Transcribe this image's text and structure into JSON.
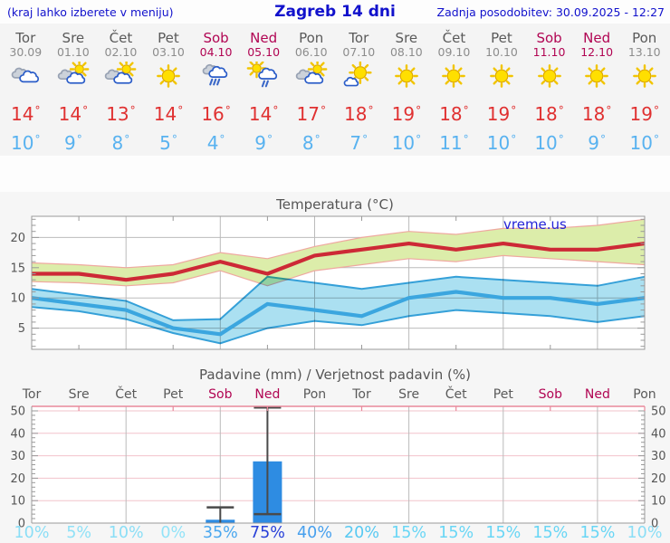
{
  "header": {
    "hint": "(kraj lahko izberete v meniju)",
    "title": "Zagreb 14 dni",
    "updated": "Zadnja posodobitev: 30.09.2025 - 12:27"
  },
  "colors": {
    "accent_blue": "#1111cc",
    "weekend": "#b10553",
    "day_label": "#5a5a5a",
    "date_label": "#8c8c8c",
    "temp_max_text": "#e03131",
    "temp_min_text": "#58b2f0",
    "chart_title": "#555555",
    "grid": "#bbbbbb",
    "spine": "#999999",
    "tick_label": "#555555",
    "max_line": "#cd2936",
    "max_band": "#dcedaa",
    "max_band_edge": "#efa8a0",
    "min_line": "#3ba6df",
    "min_band": "#abe0f1",
    "min_band_edge": "#35a0d8",
    "watermark": "#2323d7",
    "precip_grid": "#f2c3cb",
    "precip_top_spine": "#e8899b",
    "bar_fill": "#2e8ce2",
    "whisker": "#4a4a4a"
  },
  "icon_colors": {
    "sun_fill": "#ffdf00",
    "sun_ray": "#f2c500",
    "sun_stroke": "#dda700",
    "cloud_gray_fill": "#ccd2da",
    "cloud_gray_stroke": "#98a2b3",
    "cloud_white_fill": "#ffffff",
    "cloud_white_stroke": "#2b5dc8",
    "rain": "#3a67c8"
  },
  "forecast": {
    "days": [
      {
        "name": "Tor",
        "date": "30.09",
        "weekend": false,
        "icon": "cloudy",
        "tmax": "14",
        "tmin": "10"
      },
      {
        "name": "Sre",
        "date": "01.10",
        "weekend": false,
        "icon": "partly-cloudy",
        "tmax": "14",
        "tmin": "9"
      },
      {
        "name": "Čet",
        "date": "02.10",
        "weekend": false,
        "icon": "partly-cloudy",
        "tmax": "13",
        "tmin": "8"
      },
      {
        "name": "Pet",
        "date": "03.10",
        "weekend": false,
        "icon": "sunny",
        "tmax": "14",
        "tmin": "5"
      },
      {
        "name": "Sob",
        "date": "04.10",
        "weekend": true,
        "icon": "rain",
        "tmax": "16",
        "tmin": "4"
      },
      {
        "name": "Ned",
        "date": "05.10",
        "weekend": true,
        "icon": "sun-rain",
        "tmax": "14",
        "tmin": "9"
      },
      {
        "name": "Pon",
        "date": "06.10",
        "weekend": false,
        "icon": "partly-cloudy",
        "tmax": "17",
        "tmin": "8"
      },
      {
        "name": "Tor",
        "date": "07.10",
        "weekend": false,
        "icon": "mostly-sunny",
        "tmax": "18",
        "tmin": "7"
      },
      {
        "name": "Sre",
        "date": "08.10",
        "weekend": false,
        "icon": "sunny",
        "tmax": "19",
        "tmin": "10"
      },
      {
        "name": "Čet",
        "date": "09.10",
        "weekend": false,
        "icon": "sunny",
        "tmax": "18",
        "tmin": "11"
      },
      {
        "name": "Pet",
        "date": "10.10",
        "weekend": false,
        "icon": "sunny",
        "tmax": "19",
        "tmin": "10"
      },
      {
        "name": "Sob",
        "date": "11.10",
        "weekend": true,
        "icon": "sunny",
        "tmax": "18",
        "tmin": "10"
      },
      {
        "name": "Ned",
        "date": "12.10",
        "weekend": true,
        "icon": "sunny",
        "tmax": "18",
        "tmin": "9"
      },
      {
        "name": "Pon",
        "date": "13.10",
        "weekend": false,
        "icon": "sunny",
        "tmax": "19",
        "tmin": "10"
      }
    ]
  },
  "chart_data": [
    {
      "type": "line",
      "title": "Temperatura (°C)",
      "watermark": "vreme.us",
      "x_labels": [
        "Tor",
        "Sre",
        "Čet",
        "Pet",
        "Sob",
        "Ned",
        "Pon",
        "Tor",
        "Sre",
        "Čet",
        "Pet",
        "Sob",
        "Ned",
        "Pon"
      ],
      "ylim": [
        1.5,
        23.5
      ],
      "yticks": [
        5,
        10,
        15,
        20
      ],
      "grid_x_indices": [
        2,
        4,
        6,
        8,
        10,
        12
      ],
      "top_tick_indices": [
        1,
        3,
        5,
        7,
        9,
        11,
        13
      ],
      "series": [
        {
          "name": "t_max",
          "values": [
            14,
            14,
            13,
            14,
            16,
            14,
            17,
            18,
            19,
            18,
            19,
            18,
            18,
            19
          ]
        },
        {
          "name": "t_max_upper",
          "values": [
            15.8,
            15.5,
            15,
            15.5,
            17.5,
            16.5,
            18.5,
            20,
            21,
            20.5,
            21.5,
            21.5,
            22,
            23
          ]
        },
        {
          "name": "t_max_lower",
          "values": [
            12.7,
            12.5,
            12,
            12.5,
            14.5,
            12,
            14.5,
            15.5,
            16.5,
            16,
            17,
            16.5,
            16,
            15.5
          ]
        },
        {
          "name": "t_min",
          "values": [
            10,
            9,
            8,
            5,
            4,
            9,
            8,
            7,
            10,
            11,
            10,
            10,
            9,
            10
          ]
        },
        {
          "name": "t_min_upper",
          "values": [
            11.5,
            10.5,
            9.5,
            6.3,
            6.5,
            13.5,
            12.5,
            11.5,
            12.5,
            13.5,
            13,
            12.5,
            12,
            13.5
          ]
        },
        {
          "name": "t_min_lower",
          "values": [
            8.5,
            7.8,
            6.5,
            4.2,
            2.5,
            5,
            6.2,
            5.5,
            7,
            8,
            7.5,
            7,
            6,
            7
          ]
        }
      ]
    },
    {
      "type": "bar",
      "title": "Padavine (mm) / Verjetnost padavin (%)",
      "ylim": [
        0,
        52
      ],
      "yticks": [
        0,
        10,
        20,
        30,
        40,
        50
      ],
      "grid_x_indices": [
        2,
        4,
        6,
        8,
        10,
        12
      ],
      "top_tick_indices": [
        1,
        3,
        5,
        7,
        9,
        11,
        13
      ],
      "day_labels": [
        {
          "label": "Tor",
          "weekend": false
        },
        {
          "label": "Sre",
          "weekend": false
        },
        {
          "label": "Čet",
          "weekend": false
        },
        {
          "label": "Pet",
          "weekend": false
        },
        {
          "label": "Sob",
          "weekend": true
        },
        {
          "label": "Ned",
          "weekend": true
        },
        {
          "label": "Pon",
          "weekend": false
        },
        {
          "label": "Tor",
          "weekend": false
        },
        {
          "label": "Sre",
          "weekend": false
        },
        {
          "label": "Čet",
          "weekend": false
        },
        {
          "label": "Pet",
          "weekend": false
        },
        {
          "label": "Sob",
          "weekend": true
        },
        {
          "label": "Ned",
          "weekend": true
        },
        {
          "label": "Pon",
          "weekend": false
        }
      ],
      "bars": [
        {
          "day_index": 4,
          "value": 1.5,
          "whisker_low": null,
          "whisker_high": 7
        },
        {
          "day_index": 5,
          "value": 27.5,
          "whisker_low": 4,
          "whisker_high": 51.5
        }
      ],
      "probabilities": [
        {
          "value": 10,
          "label": "10%",
          "color": "#8adef6"
        },
        {
          "value": 5,
          "label": "5%",
          "color": "#8fe1f7"
        },
        {
          "value": 10,
          "label": "10%",
          "color": "#8adef6"
        },
        {
          "value": 0,
          "label": "0%",
          "color": "#92e3f8"
        },
        {
          "value": 35,
          "label": "35%",
          "color": "#4aa7ef"
        },
        {
          "value": 75,
          "label": "75%",
          "color": "#2840d8"
        },
        {
          "value": 40,
          "label": "40%",
          "color": "#47a0ee"
        },
        {
          "value": 20,
          "label": "20%",
          "color": "#57c9f2"
        },
        {
          "value": 15,
          "label": "15%",
          "color": "#68d6f5"
        },
        {
          "value": 15,
          "label": "15%",
          "color": "#68d6f5"
        },
        {
          "value": 15,
          "label": "15%",
          "color": "#68d6f5"
        },
        {
          "value": 15,
          "label": "15%",
          "color": "#68d6f5"
        },
        {
          "value": 15,
          "label": "15%",
          "color": "#68d6f5"
        },
        {
          "value": 10,
          "label": "10%",
          "color": "#8adef6"
        }
      ]
    }
  ]
}
